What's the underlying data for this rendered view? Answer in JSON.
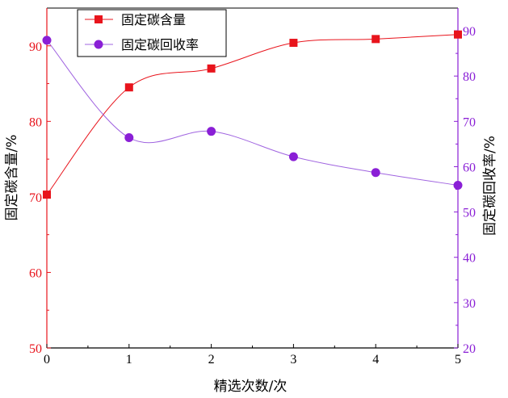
{
  "chart_data": {
    "type": "line",
    "x": [
      0,
      1,
      2,
      3,
      4,
      5
    ],
    "xlabel": "精选次数/次",
    "xlim": [
      0,
      5
    ],
    "xticks": [
      "0",
      "1",
      "2",
      "3",
      "4",
      "5"
    ],
    "series": [
      {
        "name": "固定碳含量",
        "axis": "left",
        "marker": "square",
        "color": "#e8141c",
        "values": [
          70.3,
          84.5,
          87.0,
          90.4,
          90.9,
          91.5
        ]
      },
      {
        "name": "固定碳回收率",
        "axis": "right",
        "marker": "circle",
        "color": "#8a1fd6",
        "line_color": "#a064e0",
        "values": [
          87.9,
          66.4,
          67.8,
          62.2,
          58.7,
          55.9
        ]
      }
    ],
    "y_left": {
      "label": "固定碳含量/%",
      "ylim": [
        50,
        95
      ],
      "ticks": [
        "50",
        "60",
        "70",
        "80",
        "90"
      ],
      "color": "#e8141c"
    },
    "y_right": {
      "label": "固定碳回收率/%",
      "ylim": [
        20,
        95
      ],
      "ticks": [
        "20",
        "30",
        "40",
        "50",
        "60",
        "70",
        "80",
        "90"
      ],
      "color": "#8a1fd6"
    },
    "grid": false,
    "legend_position": "top-left"
  }
}
